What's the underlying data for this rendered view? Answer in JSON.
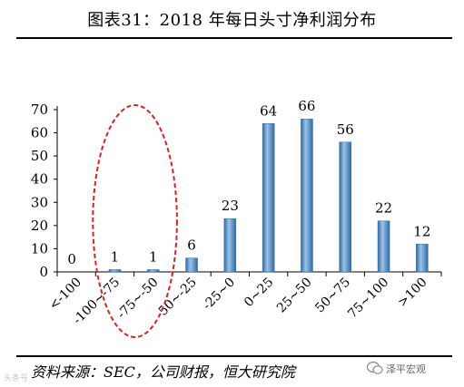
{
  "header": {
    "title": "图表31：2018 年每日头寸净利润分布"
  },
  "footer": {
    "source": "资料来源：SEC，公司财报，恒大研究院",
    "watermark_left": "头条号",
    "watermark_right": "泽平宏观"
  },
  "chart_data": {
    "type": "bar",
    "title": "",
    "xlabel": "",
    "ylabel": "",
    "categories": [
      "<-100",
      "-100~-75",
      "-75~-50",
      "-50~-25",
      "-25~0",
      "0~25",
      "25~50",
      "50~75",
      "75~100",
      ">100"
    ],
    "values": [
      0,
      1,
      1,
      6,
      23,
      64,
      66,
      56,
      22,
      12
    ],
    "ylim": [
      0,
      70
    ],
    "yticks": [
      0,
      10,
      20,
      30,
      40,
      50,
      60,
      70
    ],
    "grid": false,
    "legend": "none",
    "colors": {
      "bar_light": "#9cc3e6",
      "bar_mid": "#5b9bd5",
      "bar_dark": "#2e6ba8",
      "highlight": "#e02020"
    },
    "highlighted_categories": [
      "-100~-75",
      "-75~-50"
    ]
  }
}
